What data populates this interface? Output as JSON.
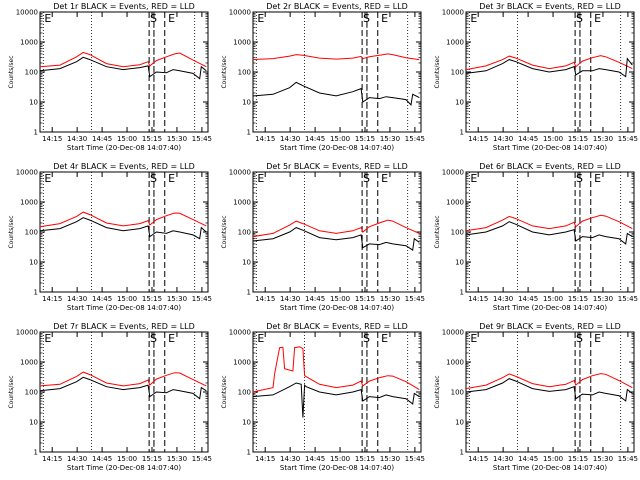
{
  "figure": {
    "panels": [
      {
        "title": "Det 1r BLACK = Events, RED = LLD"
      },
      {
        "title": "Det 2r BLACK = Events, RED = LLD"
      },
      {
        "title": "Det 3r BLACK = Events, RED = LLD"
      },
      {
        "title": "Det 4r BLACK = Events, RED = LLD"
      },
      {
        "title": "Det 5r BLACK = Events, RED = LLD"
      },
      {
        "title": "Det 6r BLACK = Events, RED = LLD"
      },
      {
        "title": "Det 7r BLACK = Events, RED = LLD"
      },
      {
        "title": "Det 8r BLACK = Events, RED = LLD"
      },
      {
        "title": "Det 9r BLACK = Events, RED = LLD"
      }
    ],
    "xlabel": "Start Time (20-Dec-08 14:07:40)",
    "ylabel": "Counts/sec",
    "marker_labels": {
      "E": "E",
      "S": "S"
    },
    "colors": {
      "events": "#000000",
      "lld": "#ff0000",
      "axes": "#000000",
      "background": "#ffffff"
    }
  },
  "chart_data": {
    "type": "line",
    "layout": "3x3 grid",
    "x_ticks": [
      "14:15",
      "14:30",
      "14:45",
      "15:00",
      "15:15",
      "15:30",
      "15:45"
    ],
    "x_tick_minutes": [
      7.33,
      22.33,
      37.33,
      52.33,
      67.33,
      82.33,
      97.33
    ],
    "xlim_minutes": [
      0,
      101
    ],
    "x_unit": "minutes after 14:07:40",
    "y_scale": "log",
    "ylim": [
      1,
      10000
    ],
    "y_ticks": [
      "1",
      "10",
      "100",
      "1000",
      "10000"
    ],
    "y_tick_values": [
      1,
      10,
      100,
      1000,
      10000
    ],
    "dotted_lines_x_minutes": [
      2.0,
      31.0,
      68.5,
      93.0
    ],
    "dashed_lines_x_minutes": [
      65.6,
      68.5,
      75.0
    ],
    "marker_positions_minutes": {
      "E_left": 2.0,
      "S": 68.5,
      "E_right": 77.0
    },
    "panels": [
      {
        "name": "Det 1r",
        "lld": {
          "x": [
            0,
            12,
            22,
            26,
            30,
            40,
            50,
            60,
            65,
            66,
            70,
            76,
            81,
            84,
            92,
            100
          ],
          "y": [
            150,
            170,
            320,
            450,
            380,
            190,
            150,
            175,
            220,
            160,
            240,
            320,
            400,
            430,
            250,
            150
          ]
        },
        "events": {
          "x": [
            0,
            12,
            22,
            26,
            30,
            40,
            50,
            60,
            65,
            66,
            70,
            76,
            80,
            84,
            92,
            96,
            97,
            100
          ],
          "y": [
            110,
            130,
            220,
            310,
            260,
            150,
            120,
            140,
            160,
            70,
            100,
            95,
            120,
            110,
            90,
            60,
            150,
            110
          ]
        }
      },
      {
        "name": "Det 2r",
        "lld": {
          "x": [
            0,
            12,
            22,
            26,
            30,
            40,
            50,
            60,
            65,
            66,
            70,
            76,
            81,
            84,
            92,
            100
          ],
          "y": [
            260,
            280,
            340,
            380,
            360,
            290,
            270,
            290,
            330,
            280,
            320,
            360,
            400,
            380,
            300,
            260
          ]
        },
        "events": {
          "x": [
            0,
            12,
            22,
            26,
            30,
            40,
            50,
            60,
            65,
            66,
            70,
            76,
            80,
            84,
            92,
            95,
            96,
            100
          ],
          "y": [
            16,
            18,
            30,
            45,
            35,
            20,
            16,
            22,
            28,
            10,
            14,
            13,
            15,
            14,
            12,
            8,
            18,
            14
          ]
        }
      },
      {
        "name": "Det 3r",
        "lld": {
          "x": [
            0,
            12,
            22,
            26,
            30,
            40,
            50,
            60,
            65,
            66,
            70,
            76,
            81,
            84,
            92,
            100
          ],
          "y": [
            120,
            160,
            260,
            340,
            290,
            170,
            130,
            160,
            210,
            150,
            230,
            300,
            350,
            320,
            210,
            130
          ]
        },
        "events": {
          "x": [
            0,
            12,
            22,
            26,
            30,
            40,
            50,
            60,
            65,
            66,
            70,
            76,
            80,
            84,
            92,
            96,
            97,
            100
          ],
          "y": [
            90,
            110,
            190,
            260,
            220,
            130,
            100,
            120,
            150,
            80,
            110,
            110,
            130,
            120,
            100,
            70,
            280,
            170
          ]
        }
      },
      {
        "name": "Det 4r",
        "lld": {
          "x": [
            0,
            12,
            22,
            26,
            30,
            40,
            50,
            60,
            65,
            66,
            70,
            76,
            81,
            84,
            92,
            100
          ],
          "y": [
            150,
            190,
            330,
            460,
            380,
            200,
            160,
            190,
            240,
            170,
            260,
            350,
            430,
            420,
            260,
            160
          ]
        },
        "events": {
          "x": [
            0,
            12,
            22,
            26,
            30,
            40,
            50,
            60,
            65,
            66,
            70,
            76,
            80,
            84,
            92,
            96,
            97,
            100
          ],
          "y": [
            110,
            130,
            220,
            300,
            250,
            140,
            110,
            130,
            160,
            70,
            100,
            90,
            110,
            100,
            80,
            60,
            140,
            100
          ]
        }
      },
      {
        "name": "Det 5r",
        "lld": {
          "x": [
            0,
            12,
            22,
            26,
            30,
            40,
            50,
            60,
            65,
            66,
            70,
            76,
            81,
            84,
            92,
            100
          ],
          "y": [
            70,
            90,
            170,
            230,
            190,
            110,
            90,
            110,
            140,
            100,
            150,
            200,
            250,
            230,
            140,
            90
          ]
        },
        "events": {
          "x": [
            0,
            12,
            22,
            26,
            30,
            40,
            50,
            60,
            65,
            66,
            70,
            76,
            80,
            84,
            92,
            96,
            97,
            100
          ],
          "y": [
            50,
            60,
            100,
            140,
            115,
            65,
            55,
            65,
            80,
            30,
            40,
            38,
            45,
            40,
            35,
            25,
            60,
            45
          ]
        }
      },
      {
        "name": "Det 6r",
        "lld": {
          "x": [
            0,
            12,
            22,
            26,
            30,
            40,
            50,
            60,
            65,
            66,
            70,
            76,
            81,
            84,
            92,
            100
          ],
          "y": [
            110,
            140,
            250,
            330,
            280,
            160,
            130,
            160,
            210,
            150,
            230,
            300,
            360,
            340,
            220,
            130
          ]
        },
        "events": {
          "x": [
            0,
            12,
            22,
            26,
            30,
            40,
            50,
            60,
            65,
            66,
            70,
            76,
            80,
            84,
            92,
            96,
            97,
            100
          ],
          "y": [
            80,
            100,
            160,
            220,
            180,
            100,
            80,
            100,
            120,
            50,
            70,
            65,
            80,
            70,
            60,
            40,
            90,
            70
          ]
        }
      },
      {
        "name": "Det 7r",
        "lld": {
          "x": [
            0,
            12,
            22,
            26,
            30,
            40,
            50,
            60,
            65,
            66,
            70,
            76,
            81,
            84,
            92,
            100
          ],
          "y": [
            160,
            180,
            330,
            460,
            380,
            200,
            160,
            190,
            250,
            170,
            270,
            360,
            440,
            430,
            260,
            160
          ]
        },
        "events": {
          "x": [
            0,
            12,
            22,
            26,
            30,
            40,
            50,
            60,
            65,
            66,
            70,
            76,
            80,
            84,
            92,
            96,
            97,
            100
          ],
          "y": [
            110,
            130,
            220,
            310,
            260,
            150,
            120,
            140,
            170,
            70,
            100,
            95,
            120,
            110,
            90,
            60,
            140,
            110
          ]
        }
      },
      {
        "name": "Det 8r",
        "lld": {
          "x": [
            0,
            12,
            13,
            16,
            18,
            19,
            24,
            25,
            28,
            30,
            31,
            40,
            50,
            60,
            65,
            66,
            70,
            76,
            81,
            84,
            92,
            100
          ],
          "y": [
            100,
            140,
            400,
            3000,
            3100,
            600,
            500,
            3000,
            3200,
            2800,
            350,
            180,
            140,
            170,
            230,
            160,
            230,
            300,
            350,
            340,
            220,
            120
          ]
        },
        "events": {
          "x": [
            0,
            12,
            22,
            26,
            29,
            30,
            31,
            32,
            40,
            50,
            60,
            65,
            66,
            70,
            76,
            80,
            84,
            92,
            96,
            97,
            100
          ],
          "y": [
            70,
            80,
            150,
            200,
            180,
            14,
            170,
            150,
            100,
            80,
            100,
            120,
            50,
            70,
            65,
            80,
            70,
            60,
            40,
            90,
            70
          ]
        }
      },
      {
        "name": "Det 9r",
        "lld": {
          "x": [
            0,
            12,
            22,
            26,
            30,
            40,
            50,
            60,
            65,
            66,
            70,
            76,
            81,
            84,
            92,
            100
          ],
          "y": [
            130,
            170,
            300,
            400,
            330,
            190,
            150,
            180,
            240,
            170,
            260,
            350,
            410,
            390,
            240,
            140
          ]
        },
        "events": {
          "x": [
            0,
            12,
            22,
            26,
            30,
            40,
            50,
            60,
            65,
            66,
            70,
            76,
            80,
            84,
            92,
            96,
            97,
            100
          ],
          "y": [
            100,
            120,
            200,
            280,
            230,
            130,
            105,
            120,
            150,
            60,
            85,
            80,
            100,
            90,
            75,
            50,
            120,
            90
          ]
        }
      }
    ]
  }
}
